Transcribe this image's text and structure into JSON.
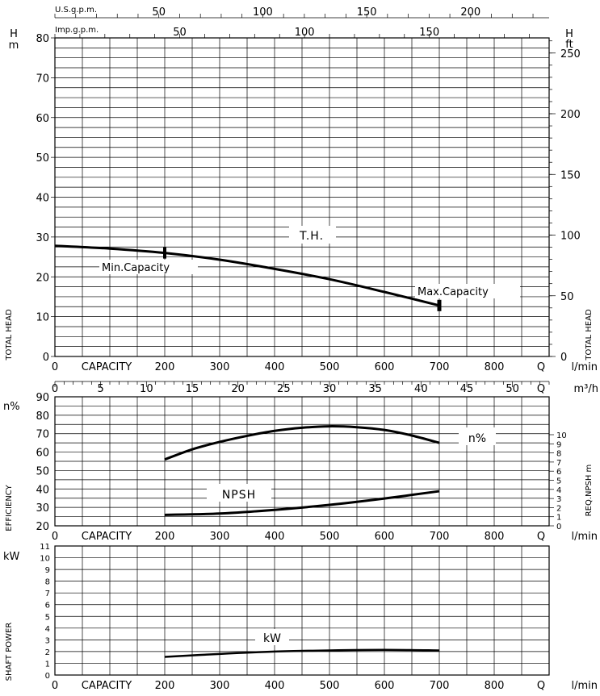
{
  "chart_data": [
    {
      "type": "line",
      "panel": "head",
      "title": "T.H.",
      "x_unit": "l/min",
      "x_label": "CAPACITY",
      "q_label": "Q",
      "xlim": [
        0,
        900
      ],
      "x_ticks": [
        0,
        200,
        300,
        400,
        500,
        600,
        700,
        800
      ],
      "ylabel_left_unit": "H m",
      "ylabel_left_h": "H",
      "ylabel_left_m": "m",
      "ylim_left": [
        0,
        80
      ],
      "y_ticks_left": [
        0,
        10,
        20,
        30,
        40,
        50,
        60,
        70,
        80
      ],
      "ylabel_right_unit": "H ft",
      "ylabel_right_h": "H",
      "ylabel_right_ft": "ft",
      "y_ticks_right": [
        0,
        50,
        100,
        150,
        200,
        250
      ],
      "side_label_left": "TOTAL HEAD",
      "side_label_right": "TOTAL HEAD",
      "top_axis_us": {
        "label": "U.S.g.p.m.",
        "ticks": [
          50,
          100,
          150,
          200
        ]
      },
      "top_axis_imp": {
        "label": "Imp.g.p.m.",
        "ticks": [
          50,
          100,
          150
        ]
      },
      "series": [
        {
          "name": "T.H.",
          "x": [
            0,
            100,
            200,
            300,
            400,
            500,
            600,
            700
          ],
          "y": [
            27.8,
            27.1,
            26.0,
            24.3,
            22.0,
            19.4,
            16.2,
            12.8
          ]
        }
      ],
      "annotations": [
        {
          "text": "Min.Capacity",
          "x": 200,
          "y": 26.0
        },
        {
          "text": "Max.Capacity",
          "x": 700,
          "y": 12.8
        }
      ]
    },
    {
      "type": "line",
      "panel": "efficiency",
      "x_unit": "l/min",
      "x_label": "CAPACITY",
      "q_label": "Q",
      "x_ticks": [
        0,
        200,
        300,
        400,
        500,
        600,
        700,
        800
      ],
      "m3h_unit": "m³/h",
      "m3h_ticks": [
        0,
        5,
        10,
        15,
        20,
        25,
        30,
        35,
        40,
        45,
        50
      ],
      "ylabel_left": "n%",
      "ylim_left": [
        20,
        90
      ],
      "y_ticks_left": [
        20,
        30,
        40,
        50,
        60,
        70,
        80,
        90
      ],
      "ylabel_right": "REQ.NPSH m",
      "y_ticks_right": [
        0,
        1,
        2,
        3,
        4,
        5,
        6,
        7,
        8,
        9,
        10
      ],
      "side_label_left": "EFFICIENCY",
      "series": [
        {
          "name": "n%",
          "x": [
            200,
            250,
            300,
            350,
            400,
            450,
            500,
            550,
            600,
            650,
            700
          ],
          "y": [
            56,
            61.5,
            65.5,
            68.8,
            71.5,
            73.2,
            74,
            73.5,
            72,
            69,
            65
          ]
        },
        {
          "name": "NPSH",
          "axis": "right",
          "x": [
            200,
            300,
            400,
            500,
            600,
            700
          ],
          "y": [
            1.2,
            1.35,
            1.75,
            2.3,
            3.0,
            3.8
          ]
        }
      ]
    },
    {
      "type": "line",
      "panel": "power",
      "x_unit": "l/min",
      "x_label": "CAPACITY",
      "q_label": "Q",
      "x_ticks": [
        0,
        200,
        300,
        400,
        500,
        600,
        700,
        800
      ],
      "ylabel_left": "kW",
      "ylim_left": [
        0,
        11
      ],
      "y_ticks_left": [
        0,
        1,
        2,
        3,
        4,
        5,
        6,
        7,
        8,
        9,
        10,
        11
      ],
      "side_label_left": "SHAFT POWER",
      "series": [
        {
          "name": "kW",
          "x": [
            200,
            300,
            400,
            500,
            600,
            700
          ],
          "y": [
            1.55,
            1.8,
            2.0,
            2.1,
            2.15,
            2.1
          ]
        }
      ]
    }
  ]
}
